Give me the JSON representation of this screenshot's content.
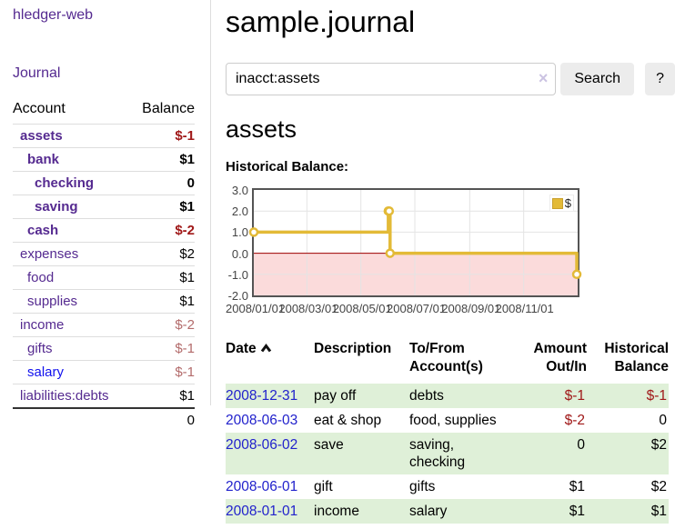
{
  "sidebar": {
    "brand": "hledger-web",
    "nav_journal": "Journal",
    "accounts_table": {
      "headers": {
        "account": "Account",
        "balance": "Balance"
      },
      "rows": [
        {
          "account": "assets",
          "depth": 1,
          "bold": true,
          "balance": "$-1",
          "balance_color": "negative"
        },
        {
          "account": "bank",
          "depth": 2,
          "bold": true,
          "balance": "$1"
        },
        {
          "account": "checking",
          "depth": 3,
          "bold": true,
          "balance": "0"
        },
        {
          "account": "saving",
          "depth": 3,
          "bold": true,
          "balance": "$1"
        },
        {
          "account": "cash",
          "depth": 2,
          "bold": true,
          "balance": "$-2",
          "balance_color": "negative"
        },
        {
          "account": "expenses",
          "depth": 1,
          "bold": false,
          "balance": "$2"
        },
        {
          "account": "food",
          "depth": 2,
          "bold": false,
          "balance": "$1"
        },
        {
          "account": "supplies",
          "depth": 2,
          "bold": false,
          "balance": "$1"
        },
        {
          "account": "income",
          "depth": 1,
          "bold": false,
          "balance": "$-2",
          "balance_color": "muted-negative"
        },
        {
          "account": "gifts",
          "depth": 2,
          "bold": false,
          "balance": "$-1",
          "balance_color": "muted-negative"
        },
        {
          "account": "salary",
          "depth": 2,
          "bold": false,
          "balance": "$-1",
          "balance_color": "muted-negative",
          "link_color": "blue"
        },
        {
          "account": "liabilities:debts",
          "depth": 1,
          "bold": false,
          "balance": "$1"
        }
      ],
      "total": "0"
    }
  },
  "header": {
    "title": "sample.journal"
  },
  "search": {
    "value": "inacct:assets",
    "clear_icon": "×",
    "button_label": "Search",
    "help_label": "?"
  },
  "main": {
    "account_heading": "assets",
    "chart_label": "Historical Balance:"
  },
  "chart_data": {
    "type": "line",
    "step": true,
    "title": "Historical Balance",
    "series": [
      {
        "name": "$",
        "color": "#e3ba37",
        "points": [
          {
            "date": "2008-01-01",
            "value": 1
          },
          {
            "date": "2008-06-01",
            "value": 2
          },
          {
            "date": "2008-06-02",
            "value": 2
          },
          {
            "date": "2008-06-03",
            "value": 0
          },
          {
            "date": "2008-12-31",
            "value": -1
          }
        ]
      }
    ],
    "ylim": [
      -2,
      3
    ],
    "yticks": [
      "3.0",
      "2.0",
      "1.0",
      "0.0",
      "-1.0",
      "-2.0"
    ],
    "xlim": [
      "2008-01-01",
      "2009-01-01"
    ],
    "xticks": [
      "2008/01/01",
      "2008/03/01",
      "2008/05/01",
      "2008/07/01",
      "2008/09/01",
      "2008/11/01"
    ],
    "legend": "$",
    "legend_position": "top-right",
    "grid": true,
    "negative_region_color": "#fbdbdb",
    "zero_line_color": "#a00000"
  },
  "register": {
    "headers": {
      "date": "Date",
      "description": "Description",
      "accounts": "To/From Account(s)",
      "amount": "Amount Out/In",
      "balance": "Historical Balance"
    },
    "sort": {
      "column": "date",
      "direction": "ascending"
    },
    "rows": [
      {
        "date": "2008-12-31",
        "description": "pay off",
        "accounts": "debts",
        "amount": "$-1",
        "amount_negative": true,
        "balance": "$-1",
        "balance_negative": true,
        "highlight": true
      },
      {
        "date": "2008-06-03",
        "description": "eat & shop",
        "accounts": "food, supplies",
        "amount": "$-2",
        "amount_negative": true,
        "balance": "0",
        "balance_negative": false,
        "highlight": false
      },
      {
        "date": "2008-06-02",
        "description": "save",
        "accounts": "saving, checking",
        "amount": "0",
        "amount_negative": false,
        "balance": "$2",
        "balance_negative": false,
        "highlight": true
      },
      {
        "date": "2008-06-01",
        "description": "gift",
        "accounts": "gifts",
        "amount": "$1",
        "amount_negative": false,
        "balance": "$2",
        "balance_negative": false,
        "highlight": false
      },
      {
        "date": "2008-01-01",
        "description": "income",
        "accounts": "salary",
        "amount": "$1",
        "amount_negative": false,
        "balance": "$1",
        "balance_negative": false,
        "highlight": true
      }
    ]
  },
  "colors": {
    "link_purple": "#552a90",
    "link_blue": "#1111ee",
    "date_link_blue": "#2222cc",
    "negative_red": "#a01818",
    "muted_negative": "#b36b6b",
    "row_highlight_green": "#dff0d8",
    "chart_gold": "#e3ba37",
    "chart_negative_pink": "#fbdbdb",
    "chart_zero_line": "#a00000",
    "button_gray": "#ececec"
  }
}
